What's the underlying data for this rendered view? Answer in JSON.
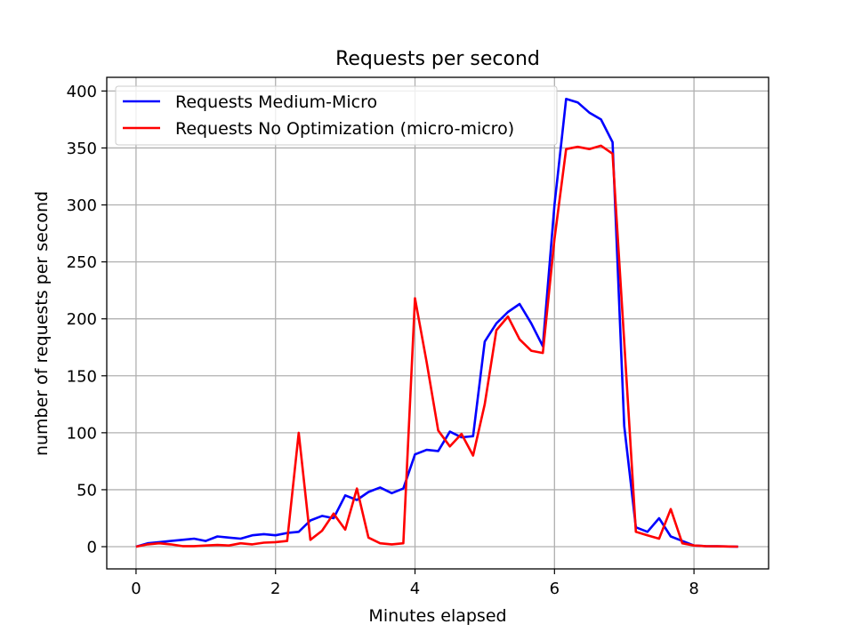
{
  "chart_data": {
    "type": "line",
    "title": "Requests per second",
    "xlabel": "Minutes elapsed",
    "ylabel": "number of requests per second",
    "xlim": [
      -0.42,
      9.07
    ],
    "ylim": [
      -19.5,
      412
    ],
    "xticks": [
      0,
      2,
      4,
      6,
      8
    ],
    "yticks": [
      0,
      50,
      100,
      150,
      200,
      250,
      300,
      350,
      400
    ],
    "grid": true,
    "legend_position": "top-left",
    "series": [
      {
        "name": "Requests Medium-Micro",
        "color": "#0000ff",
        "x": [
          0,
          0.167,
          0.333,
          0.5,
          0.667,
          0.833,
          1.0,
          1.167,
          1.333,
          1.5,
          1.667,
          1.833,
          2.0,
          2.167,
          2.333,
          2.5,
          2.667,
          2.833,
          3.0,
          3.167,
          3.333,
          3.5,
          3.667,
          3.833,
          4.0,
          4.167,
          4.333,
          4.5,
          4.667,
          4.833,
          5.0,
          5.167,
          5.333,
          5.5,
          5.667,
          5.833,
          6.0,
          6.167,
          6.333,
          6.5,
          6.667,
          6.833,
          7.0,
          7.167,
          7.333,
          7.5,
          7.667,
          7.833,
          8.0,
          8.167,
          8.333,
          8.5,
          8.633
        ],
        "y": [
          0,
          3,
          4,
          5,
          6,
          7,
          5,
          9,
          8,
          7,
          10,
          11,
          10,
          12,
          13,
          23,
          27,
          25,
          45,
          41,
          48,
          52,
          47,
          51,
          81,
          85,
          84,
          101,
          96,
          97,
          180,
          196,
          206,
          213,
          196,
          176,
          300,
          393,
          390,
          381,
          375,
          355,
          106,
          17,
          13,
          25,
          9,
          5,
          1,
          0.5,
          0.3,
          0.2,
          0
        ]
      },
      {
        "name": "Requests No Optimization (micro-micro)",
        "color": "#ff0000",
        "x": [
          0,
          0.167,
          0.333,
          0.5,
          0.667,
          0.833,
          1.0,
          1.167,
          1.333,
          1.5,
          1.667,
          1.833,
          2.0,
          2.167,
          2.333,
          2.5,
          2.667,
          2.833,
          3.0,
          3.167,
          3.333,
          3.5,
          3.667,
          3.833,
          4.0,
          4.167,
          4.333,
          4.5,
          4.667,
          4.833,
          5.0,
          5.167,
          5.333,
          5.5,
          5.667,
          5.833,
          6.0,
          6.167,
          6.333,
          6.5,
          6.667,
          6.833,
          7.0,
          7.167,
          7.333,
          7.5,
          7.667,
          7.833,
          8.0,
          8.167,
          8.333,
          8.5,
          8.633
        ],
        "y": [
          0,
          2,
          3,
          2,
          0.5,
          0.5,
          1,
          1.5,
          1,
          3,
          2,
          3.5,
          4,
          5,
          100,
          6,
          14,
          29,
          15,
          51,
          8,
          3,
          2,
          3,
          218,
          162,
          102,
          88,
          99,
          80,
          125,
          190,
          202,
          182,
          172,
          170,
          270,
          349,
          351,
          349,
          352,
          345,
          180,
          13,
          10,
          7,
          33,
          3,
          1,
          0.5,
          0.3,
          0.2,
          0
        ]
      }
    ]
  }
}
